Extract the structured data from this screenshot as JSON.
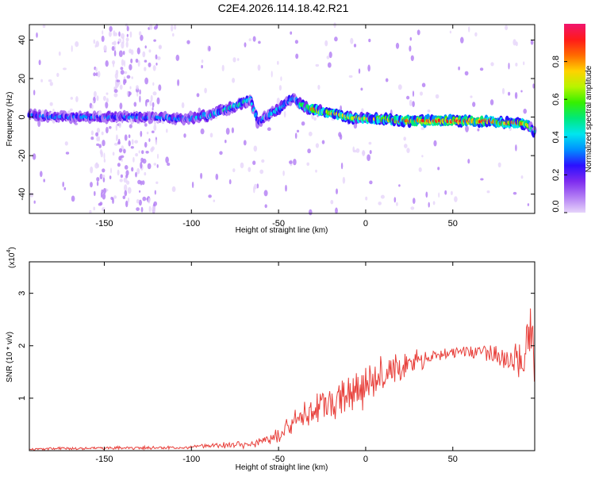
{
  "figure": {
    "title": "C2E4.2026.114.18.42.R21"
  },
  "chart_data": [
    {
      "type": "heatmap",
      "title": "C2E4.2026.114.18.42.R21",
      "xlabel": "Height of straight line (km)",
      "ylabel": "Frequency (Hz)",
      "xlim": [
        -193,
        97
      ],
      "ylim": [
        -50,
        48
      ],
      "xticks": [
        -150,
        -100,
        -50,
        0,
        50
      ],
      "xtick_labels": [
        "-150",
        "-100",
        "-50",
        "0",
        "50"
      ],
      "yticks": [
        -40,
        -20,
        0,
        20,
        40
      ],
      "ytick_labels": [
        "-40",
        "-20",
        "0",
        "20",
        "40"
      ],
      "colorbar": {
        "label": "Normalized spectral amplitude",
        "range": [
          0,
          1
        ],
        "ticks": [
          0,
          0.2,
          0.4,
          0.6,
          0.8
        ],
        "tick_labels": [
          "0.0",
          "0.2",
          "0.4",
          "0.6",
          "0.8"
        ],
        "colormap": [
          "#e6d4fa",
          "#b27cf4",
          "#7d2bef",
          "#2b10ff",
          "#0090ff",
          "#00e6ee",
          "#00e87a",
          "#35f000",
          "#b8f400",
          "#ffd200",
          "#ff6a00",
          "#ff1a1a",
          "#f0156e"
        ]
      },
      "ridge": {
        "x": [
          -193,
          -180,
          -160,
          -140,
          -120,
          -105,
          -90,
          -80,
          -72,
          -66,
          -62,
          -58,
          -52,
          -46,
          -42,
          -38,
          -34,
          -30,
          -20,
          -10,
          0,
          10,
          20,
          30,
          40,
          50,
          60,
          70,
          80,
          88,
          93,
          95,
          97
        ],
        "y": [
          1,
          0,
          0,
          0,
          0,
          -1,
          1,
          4,
          7,
          9,
          -3,
          0,
          3,
          7,
          10,
          7,
          5,
          4,
          2,
          0,
          -1,
          -1,
          -2,
          -2,
          -2,
          -2,
          -2,
          -2,
          -3,
          -3,
          -4,
          -6,
          -8
        ],
        "amplitude": [
          0.3,
          0.35,
          0.33,
          0.36,
          0.35,
          0.4,
          0.45,
          0.5,
          0.5,
          0.45,
          0.35,
          0.4,
          0.45,
          0.4,
          0.35,
          0.55,
          0.75,
          0.85,
          0.8,
          0.75,
          0.75,
          0.8,
          0.88,
          0.92,
          0.95,
          0.96,
          0.95,
          0.92,
          0.8,
          0.85,
          0.75,
          0.5,
          0.4
        ]
      }
    },
    {
      "type": "line",
      "xlabel": "Height of straight line (km)",
      "ylabel": "SNR (10 * v/v)",
      "y_multiplier_label": "(x10",
      "y_multiplier_exp": "4",
      "y_multiplier_close": ")",
      "xlim": [
        -193,
        97
      ],
      "ylim": [
        0,
        3.6
      ],
      "xticks": [
        -150,
        -100,
        -50,
        0,
        50
      ],
      "xtick_labels": [
        "-150",
        "-100",
        "-50",
        "0",
        "50"
      ],
      "yticks": [
        1,
        2,
        3
      ],
      "ytick_labels": [
        "1",
        "2",
        "3"
      ],
      "color": "#e8413c",
      "envelope": {
        "x": [
          -193,
          -150,
          -100,
          -90,
          -70,
          -60,
          -50,
          -40,
          -30,
          -20,
          -10,
          0,
          10,
          20,
          30,
          40,
          50,
          60,
          70,
          80,
          90,
          95,
          97
        ],
        "y": [
          0.03,
          0.05,
          0.06,
          0.09,
          0.12,
          0.15,
          0.32,
          0.55,
          0.75,
          0.95,
          1.1,
          1.25,
          1.45,
          1.6,
          1.72,
          1.8,
          1.86,
          1.88,
          1.87,
          1.8,
          1.72,
          2.4,
          1.0
        ],
        "noise": [
          0.02,
          0.03,
          0.03,
          0.05,
          0.07,
          0.08,
          0.15,
          0.22,
          0.28,
          0.35,
          0.38,
          0.42,
          0.4,
          0.32,
          0.22,
          0.16,
          0.12,
          0.12,
          0.15,
          0.25,
          0.35,
          0.5,
          0.6
        ]
      }
    }
  ]
}
